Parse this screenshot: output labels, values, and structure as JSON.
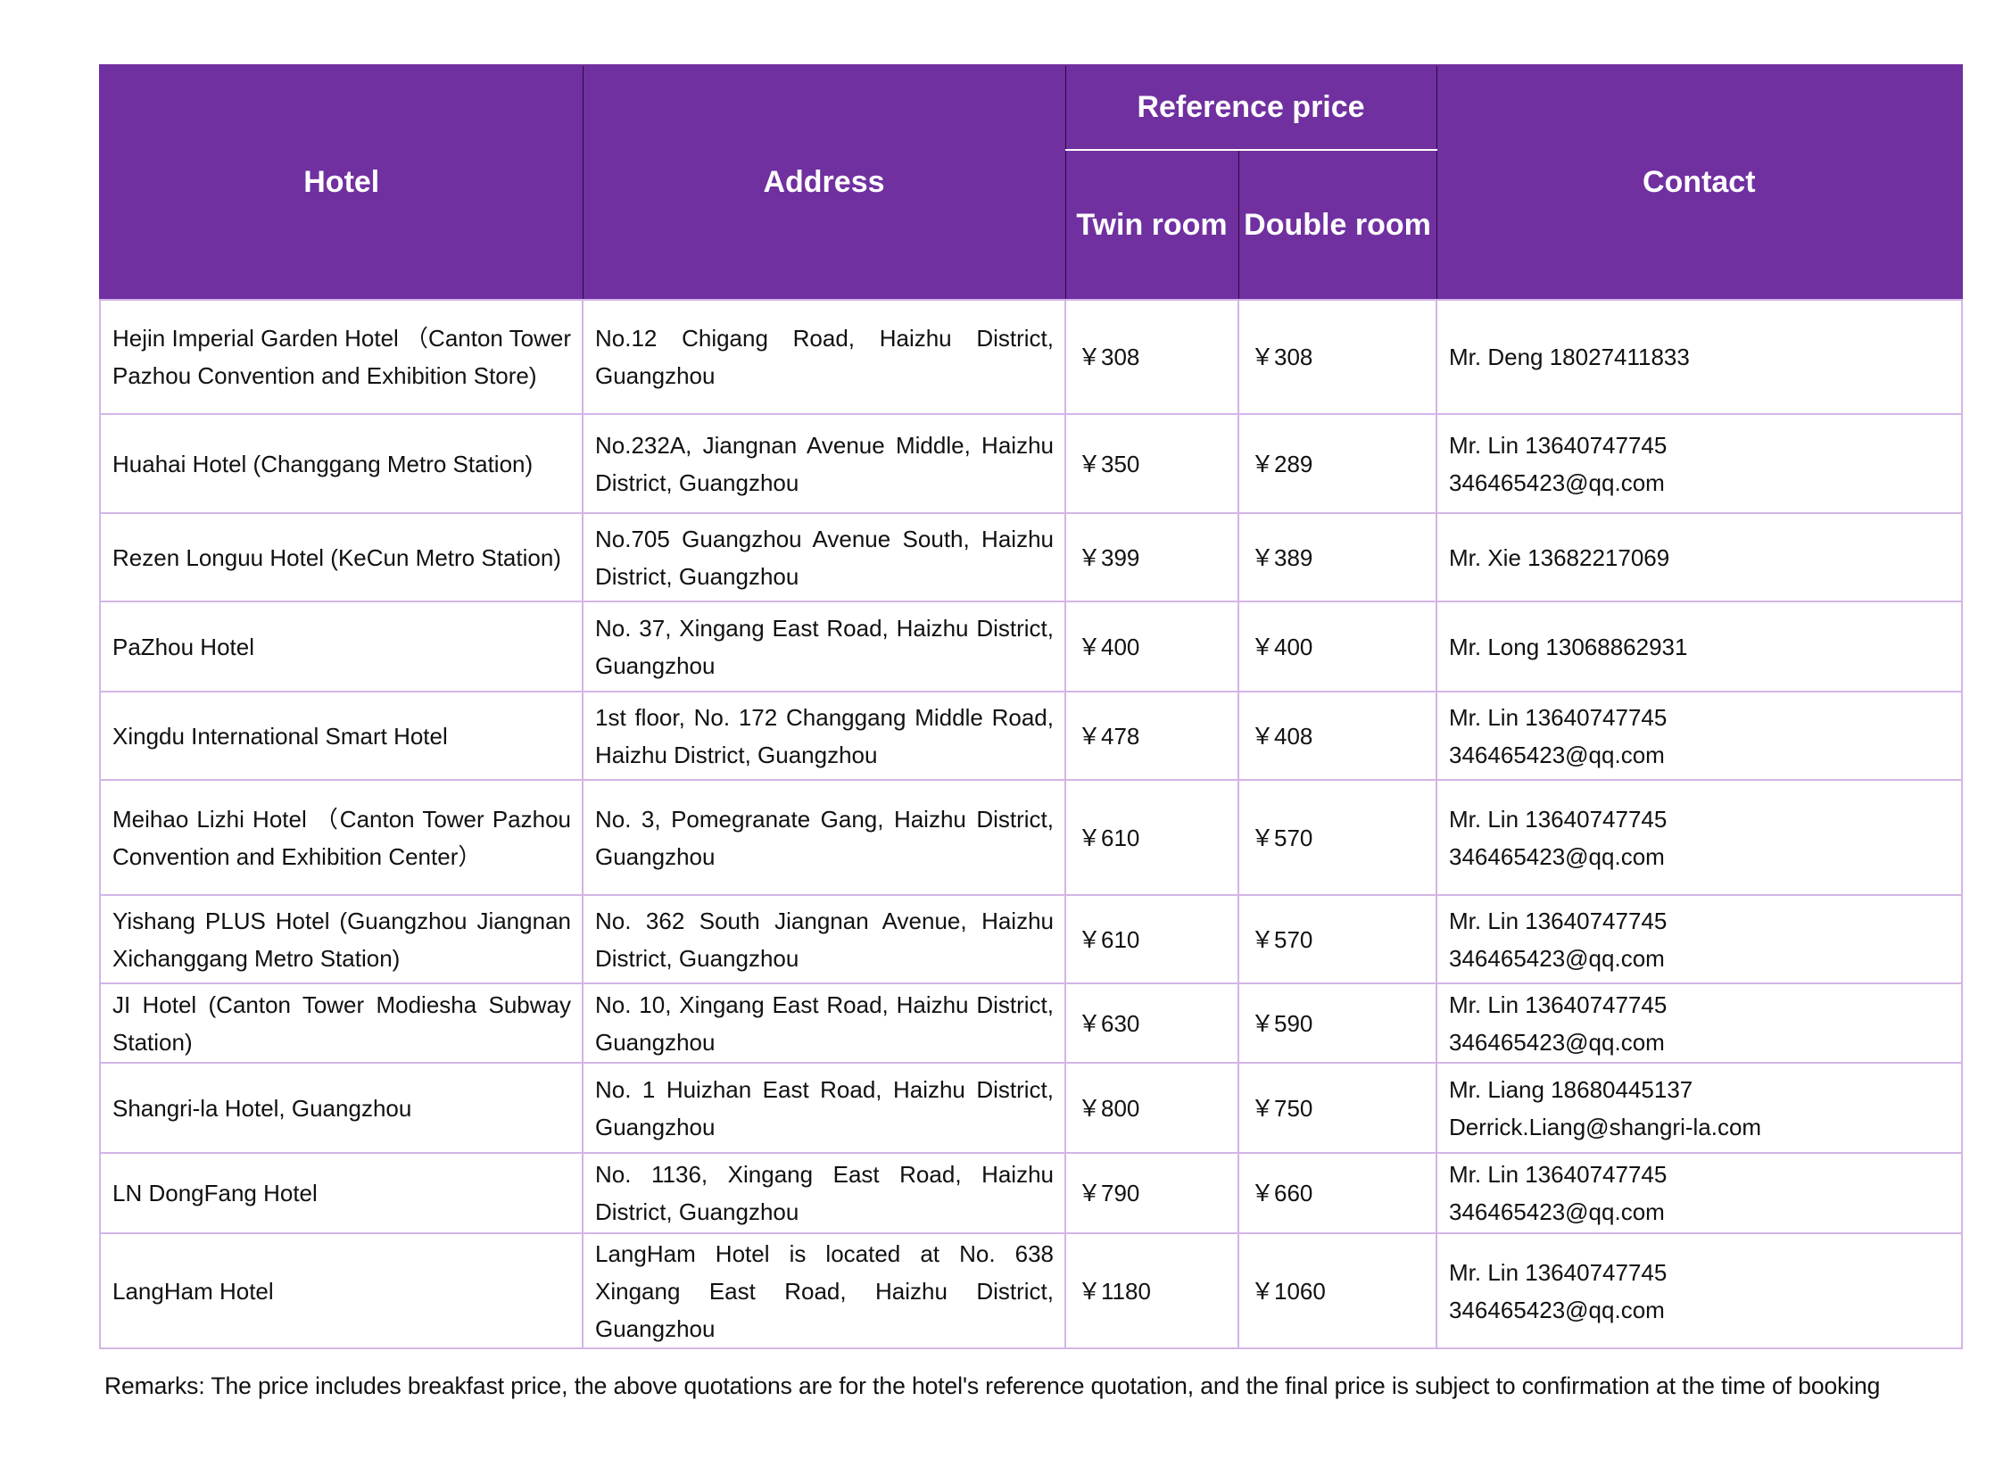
{
  "header": {
    "hotel": "Hotel",
    "address": "Address",
    "reference_price": "Reference price",
    "twin_room": "Twin room",
    "double_room": "Double room",
    "contact": "Contact"
  },
  "rows": [
    {
      "hotel": "Hejin Imperial Garden Hotel （Canton Tower Pazhou Convention and Exhibition Store)",
      "address": "No.12 Chigang Road, Haizhu District, Guangzhou",
      "twin": "￥308",
      "double": "￥308",
      "contact": [
        "Mr. Deng 18027411833"
      ]
    },
    {
      "hotel": "Huahai Hotel (Changgang Metro Station)",
      "address": "No.232A, Jiangnan Avenue Middle, Haizhu District, Guangzhou",
      "twin": "￥350",
      "double": "￥289",
      "contact": [
        "Mr. Lin 13640747745",
        "346465423@qq.com"
      ]
    },
    {
      "hotel": "Rezen Longuu Hotel (KeCun Metro Station)",
      "address": "No.705 Guangzhou Avenue South, Haizhu District, Guangzhou",
      "twin": "￥399",
      "double": "￥389",
      "contact": [
        "Mr. Xie 13682217069"
      ]
    },
    {
      "hotel": "PaZhou Hotel",
      "address": "No. 37, Xingang East Road, Haizhu District, Guangzhou",
      "twin": "￥400",
      "double": "￥400",
      "contact": [
        "Mr. Long 13068862931"
      ]
    },
    {
      "hotel": "Xingdu International Smart Hotel",
      "address": "1st floor, No. 172 Changgang Middle Road, Haizhu District, Guangzhou",
      "twin": "￥478",
      "double": "￥408",
      "contact": [
        "Mr. Lin 13640747745",
        "346465423@qq.com"
      ]
    },
    {
      "hotel": "Meihao Lizhi Hotel （Canton Tower Pazhou Convention and Exhibition Center）",
      "address": "No. 3, Pomegranate Gang, Haizhu District, Guangzhou",
      "twin": "￥610",
      "double": "￥570",
      "contact": [
        "Mr. Lin 13640747745",
        "346465423@qq.com"
      ]
    },
    {
      "hotel": "Yishang PLUS Hotel (Guangzhou Jiangnan Xichanggang Metro Station)",
      "address": "No. 362 South Jiangnan Avenue, Haizhu District, Guangzhou",
      "twin": "￥610",
      "double": "￥570",
      "contact": [
        "Mr. Lin 13640747745",
        "346465423@qq.com"
      ]
    },
    {
      "hotel": "JI Hotel (Canton Tower Modiesha Subway Station)",
      "address": "No. 10, Xingang East Road, Haizhu District, Guangzhou",
      "twin": "￥630",
      "double": "￥590",
      "contact": [
        "Mr. Lin 13640747745",
        "346465423@qq.com"
      ]
    },
    {
      "hotel": "Shangri-la Hotel, Guangzhou",
      "address": "No. 1 Huizhan East Road, Haizhu District, Guangzhou",
      "twin": "￥800",
      "double": "￥750",
      "contact": [
        "Mr. Liang 18680445137",
        "Derrick.Liang@shangri-la.com"
      ]
    },
    {
      "hotel": "LN DongFang Hotel",
      "address": "No. 1136, Xingang East Road, Haizhu District, Guangzhou",
      "twin": "￥790",
      "double": "￥660",
      "contact": [
        "Mr. Lin 13640747745",
        "346465423@qq.com"
      ]
    },
    {
      "hotel": "LangHam Hotel",
      "address": "LangHam Hotel is located at No. 638 Xingang East Road, Haizhu District, Guangzhou",
      "twin": "￥1180",
      "double": "￥1060",
      "contact": [
        "Mr. Lin 13640747745",
        "346465423@qq.com"
      ]
    }
  ],
  "remarks": "Remarks: The price includes breakfast price, the above quotations are for the hotel's reference quotation, and the final price is subject to confirmation at the time of booking",
  "colors": {
    "header_bg": "#7030a0",
    "row_border": "#d3b5e6"
  }
}
